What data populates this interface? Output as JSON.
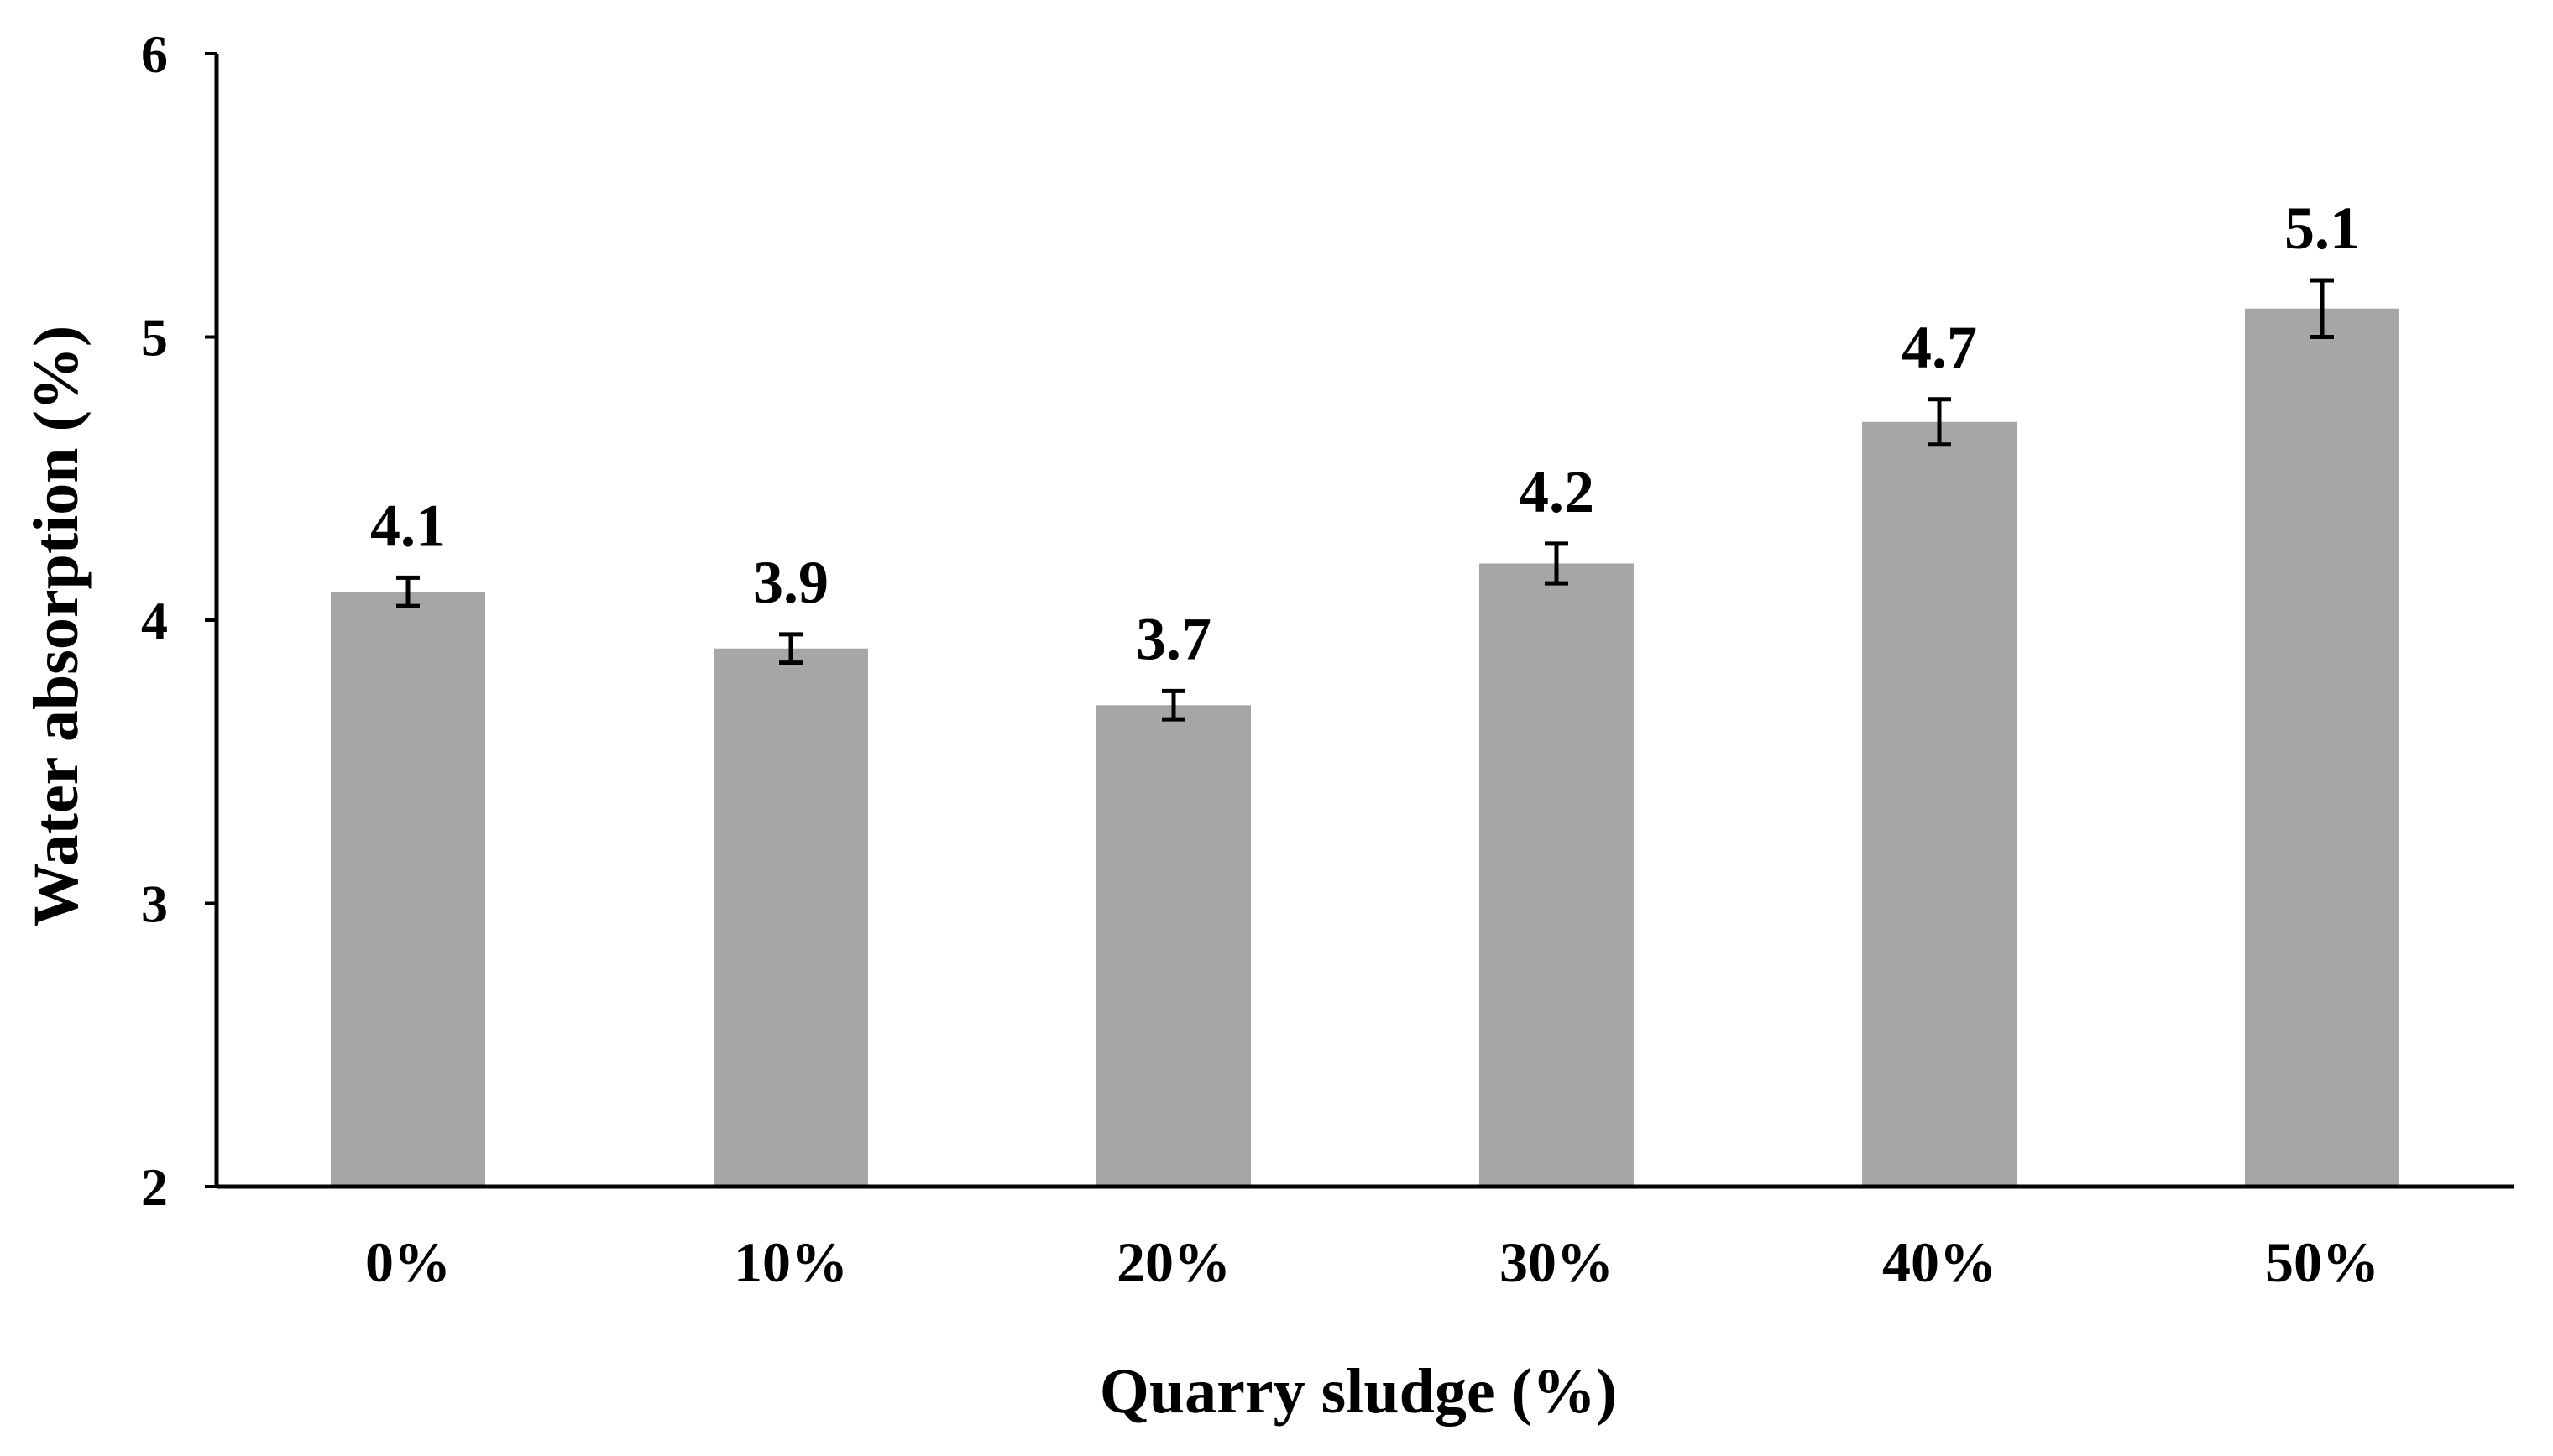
{
  "chart_data": {
    "type": "bar",
    "title": "",
    "xlabel": "Quarry sludge (%)",
    "ylabel": "Water absorption (%)",
    "categories": [
      "0%",
      "10%",
      "20%",
      "30%",
      "40%",
      "50%"
    ],
    "values": [
      4.1,
      3.9,
      3.7,
      4.2,
      4.7,
      5.1
    ],
    "value_labels": [
      "4.1",
      "3.9",
      "3.7",
      "4.2",
      "4.7",
      "5.1"
    ],
    "error": [
      0.05,
      0.05,
      0.05,
      0.07,
      0.08,
      0.1
    ],
    "ylim": [
      2,
      6
    ],
    "yticks": [
      "2",
      "3",
      "4",
      "5",
      "6"
    ],
    "grid": false,
    "legend": "none",
    "bar_color": "#a6a6a6",
    "axis_color": "#000000"
  }
}
